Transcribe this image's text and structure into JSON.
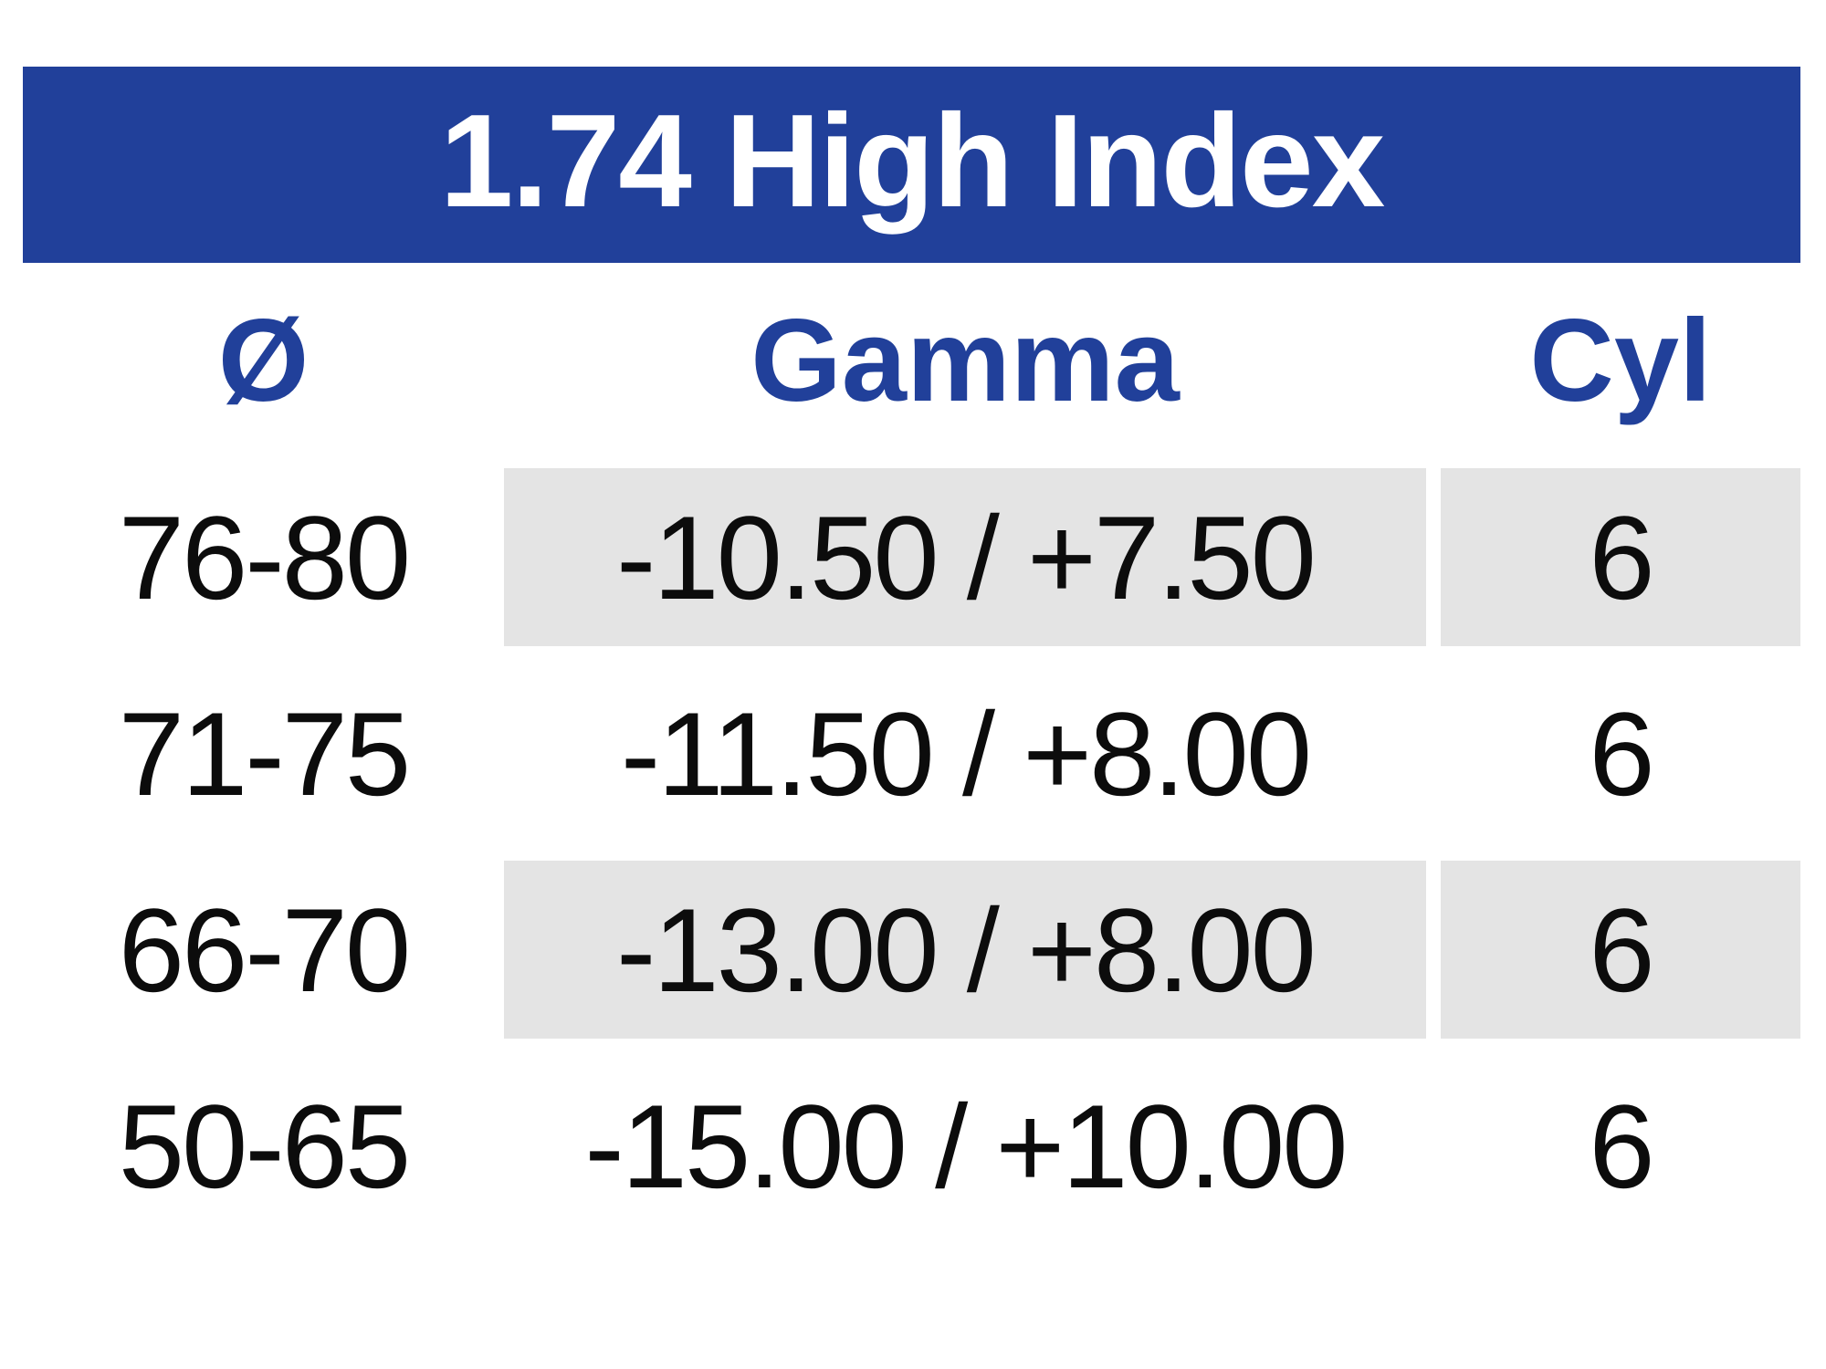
{
  "title": "1.74 High Index",
  "colors": {
    "banner_blue": "#21409a",
    "header_text_blue": "#21409a",
    "row_shade_gray": "#e4e4e4",
    "data_text": "#0c0c0c"
  },
  "table": {
    "columns": [
      {
        "key": "diameter",
        "label": "Ø"
      },
      {
        "key": "gamma",
        "label": "Gamma"
      },
      {
        "key": "cyl",
        "label": "Cyl"
      }
    ],
    "rows": [
      {
        "diameter": "76-80",
        "gamma": "-10.50 / +7.50",
        "cyl": "6",
        "shaded": true
      },
      {
        "diameter": "71-75",
        "gamma": "-11.50 / +8.00",
        "cyl": "6",
        "shaded": false
      },
      {
        "diameter": "66-70",
        "gamma": "-13.00 / +8.00",
        "cyl": "6",
        "shaded": true
      },
      {
        "diameter": "50-65",
        "gamma": "-15.00 / +10.00",
        "cyl": "6",
        "shaded": false
      }
    ]
  }
}
